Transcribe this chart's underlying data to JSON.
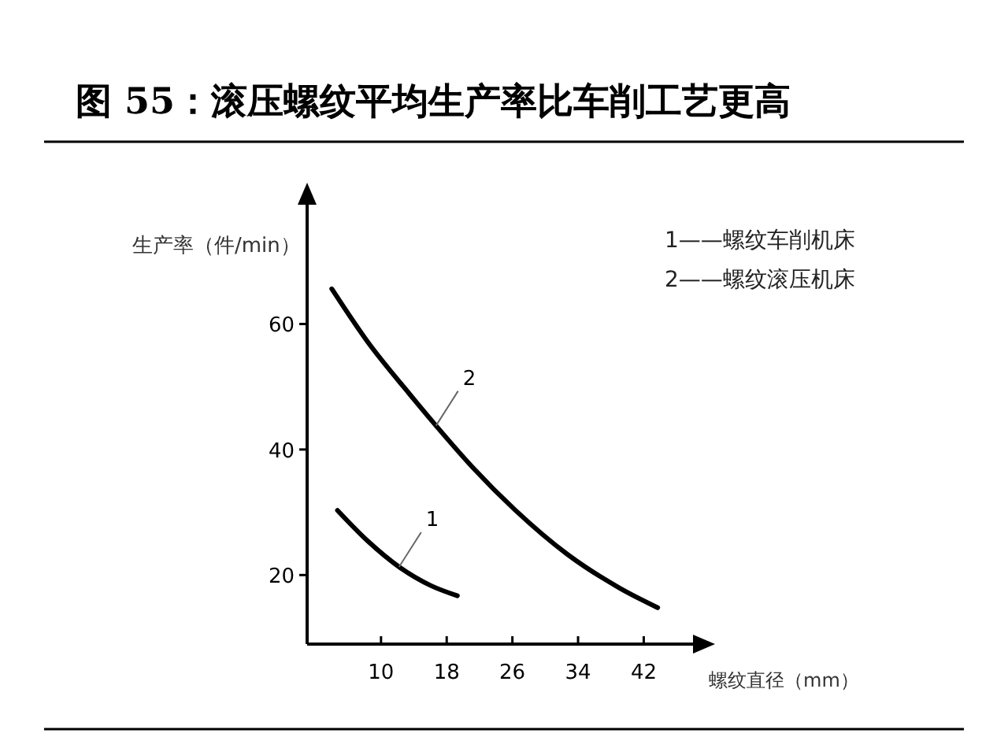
{
  "chart_data": {
    "type": "line",
    "title": "图 55：滚压螺纹平均生产率比车削工艺更高",
    "xlabel": "螺纹直径（mm）",
    "ylabel": "生产率（件/min）",
    "xlim": [
      1,
      48
    ],
    "ylim": [
      9,
      79
    ],
    "xticks": [
      10,
      18,
      26,
      34,
      42
    ],
    "yticks": [
      20,
      40,
      60
    ],
    "grid": false,
    "marker": "none",
    "line_style": "solid",
    "series": [
      {
        "color": "#000000",
        "x": [
          4.7,
          8.4,
          12.2,
          16.1,
          19.3
        ],
        "values": [
          30.3,
          25.4,
          21.3,
          18.3,
          16.7
        ]
      },
      {
        "color": "#000000",
        "x": [
          4.0,
          8.4,
          13.5,
          16.7,
          21.2,
          26.3,
          32.7,
          39.1,
          43.7
        ],
        "values": [
          65.6,
          57.1,
          48.8,
          43.8,
          37.1,
          30.4,
          23.3,
          17.9,
          14.8
        ]
      }
    ],
    "annotations": [
      "1——螺纹车削机床",
      "2——螺纹滚压机床",
      {
        "text": "1",
        "x": 12.2,
        "y": 21.3
      },
      {
        "text": "2",
        "x": 16.7,
        "y": 43.8
      }
    ]
  }
}
